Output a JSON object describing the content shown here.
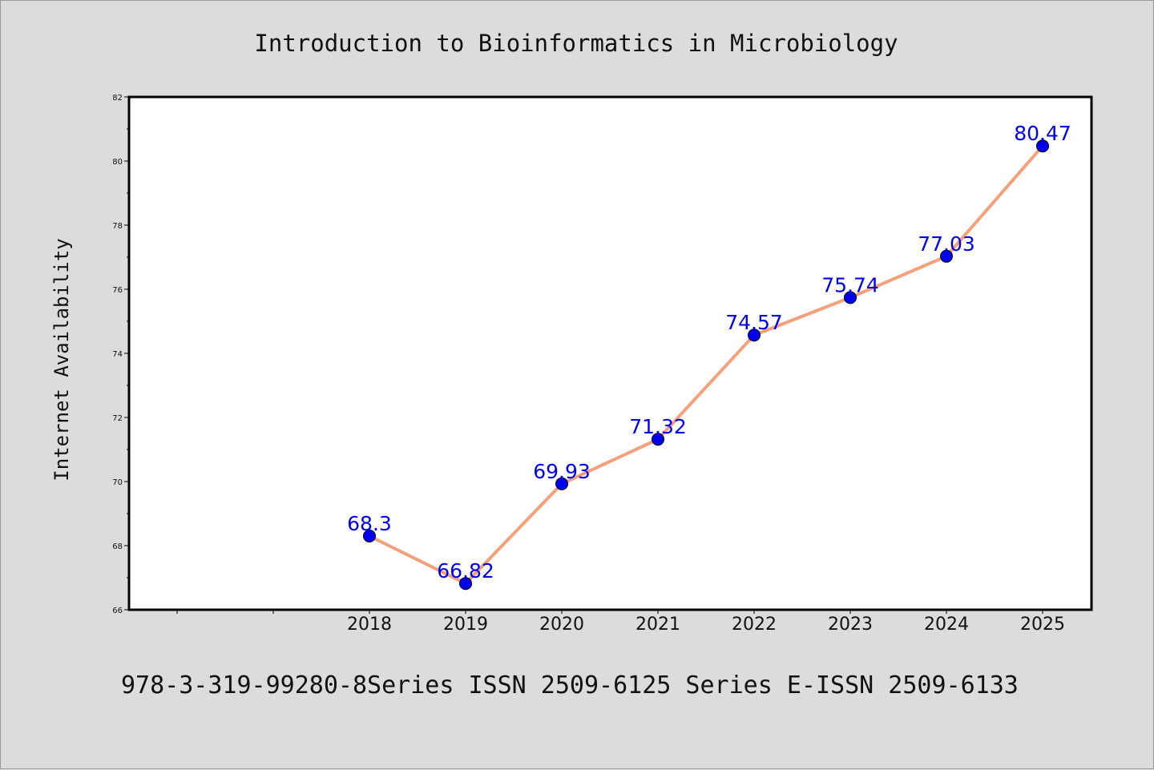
{
  "chart_data": {
    "type": "line",
    "title": "Introduction to Bioinformatics in Microbiology",
    "xlabel": "",
    "ylabel": "Internet Availability",
    "x": [
      "2018",
      "2019",
      "2020",
      "2021",
      "2022",
      "2023",
      "2024",
      "2025"
    ],
    "series": [
      {
        "values": [
          68.3,
          66.82,
          69.93,
          71.32,
          74.57,
          75.74,
          77.03,
          80.47
        ]
      }
    ],
    "data_labels": [
      "68.3",
      "66.82",
      "69.93",
      "71.32",
      "74.57",
      "75.74",
      "77.03",
      "80.47"
    ],
    "ylim": [
      66,
      82
    ],
    "y_ticks": [
      "66",
      "68",
      "70",
      "72",
      "74",
      "76",
      "78",
      "80",
      "82"
    ],
    "grid": false,
    "colors": {
      "line": "#f4a07a",
      "marker": "#0000ee",
      "label": "#0000ee",
      "background": "#dcdcdc",
      "plot_bg": "#ffffff"
    }
  },
  "footer": "978-3-319-99280-8Series ISSN 2509-6125 Series E-ISSN 2509-6133"
}
